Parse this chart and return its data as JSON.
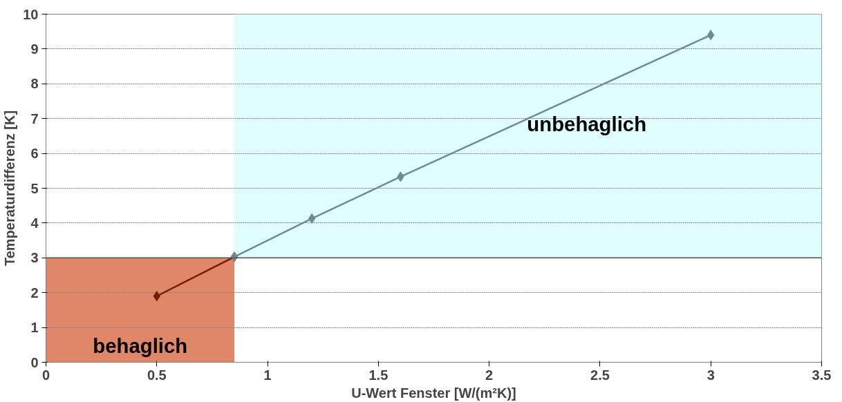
{
  "chart_data": {
    "type": "line",
    "xlabel": "U-Wert Fenster [W/(m²K)]",
    "ylabel": "Temperaturdifferenz [K]",
    "series": [
      {
        "color": "#7a1a00",
        "x": [
          0.5,
          0.85
        ],
        "values": [
          1.9,
          3.03
        ]
      },
      {
        "color": "#6e8c8c",
        "x": [
          0.85,
          1.2,
          1.6,
          3.0
        ],
        "values": [
          3.03,
          4.13,
          5.33,
          9.4
        ]
      }
    ],
    "xlim": [
      0,
      3.5
    ],
    "xticks": [
      0,
      0.5,
      1,
      1.5,
      2,
      2.5,
      3,
      3.5
    ],
    "ylim": [
      0,
      10
    ],
    "yticks": [
      0,
      1,
      2,
      3,
      4,
      5,
      6,
      7,
      8,
      9,
      10
    ],
    "bands": [
      {
        "axis": "x",
        "from": 0,
        "to": 0.85,
        "label": "behaglich",
        "color": "#e0876a"
      },
      {
        "axis": "x",
        "from": 0.85,
        "to": 3.5,
        "label": "unbehaglich",
        "color": "#e0feff"
      }
    ],
    "ref_lines": [
      {
        "axis": "y",
        "value": 3,
        "color": "#505050",
        "line_style": "solid"
      }
    ],
    "grid": "y",
    "marker": "diamond",
    "line_style": "solid"
  }
}
